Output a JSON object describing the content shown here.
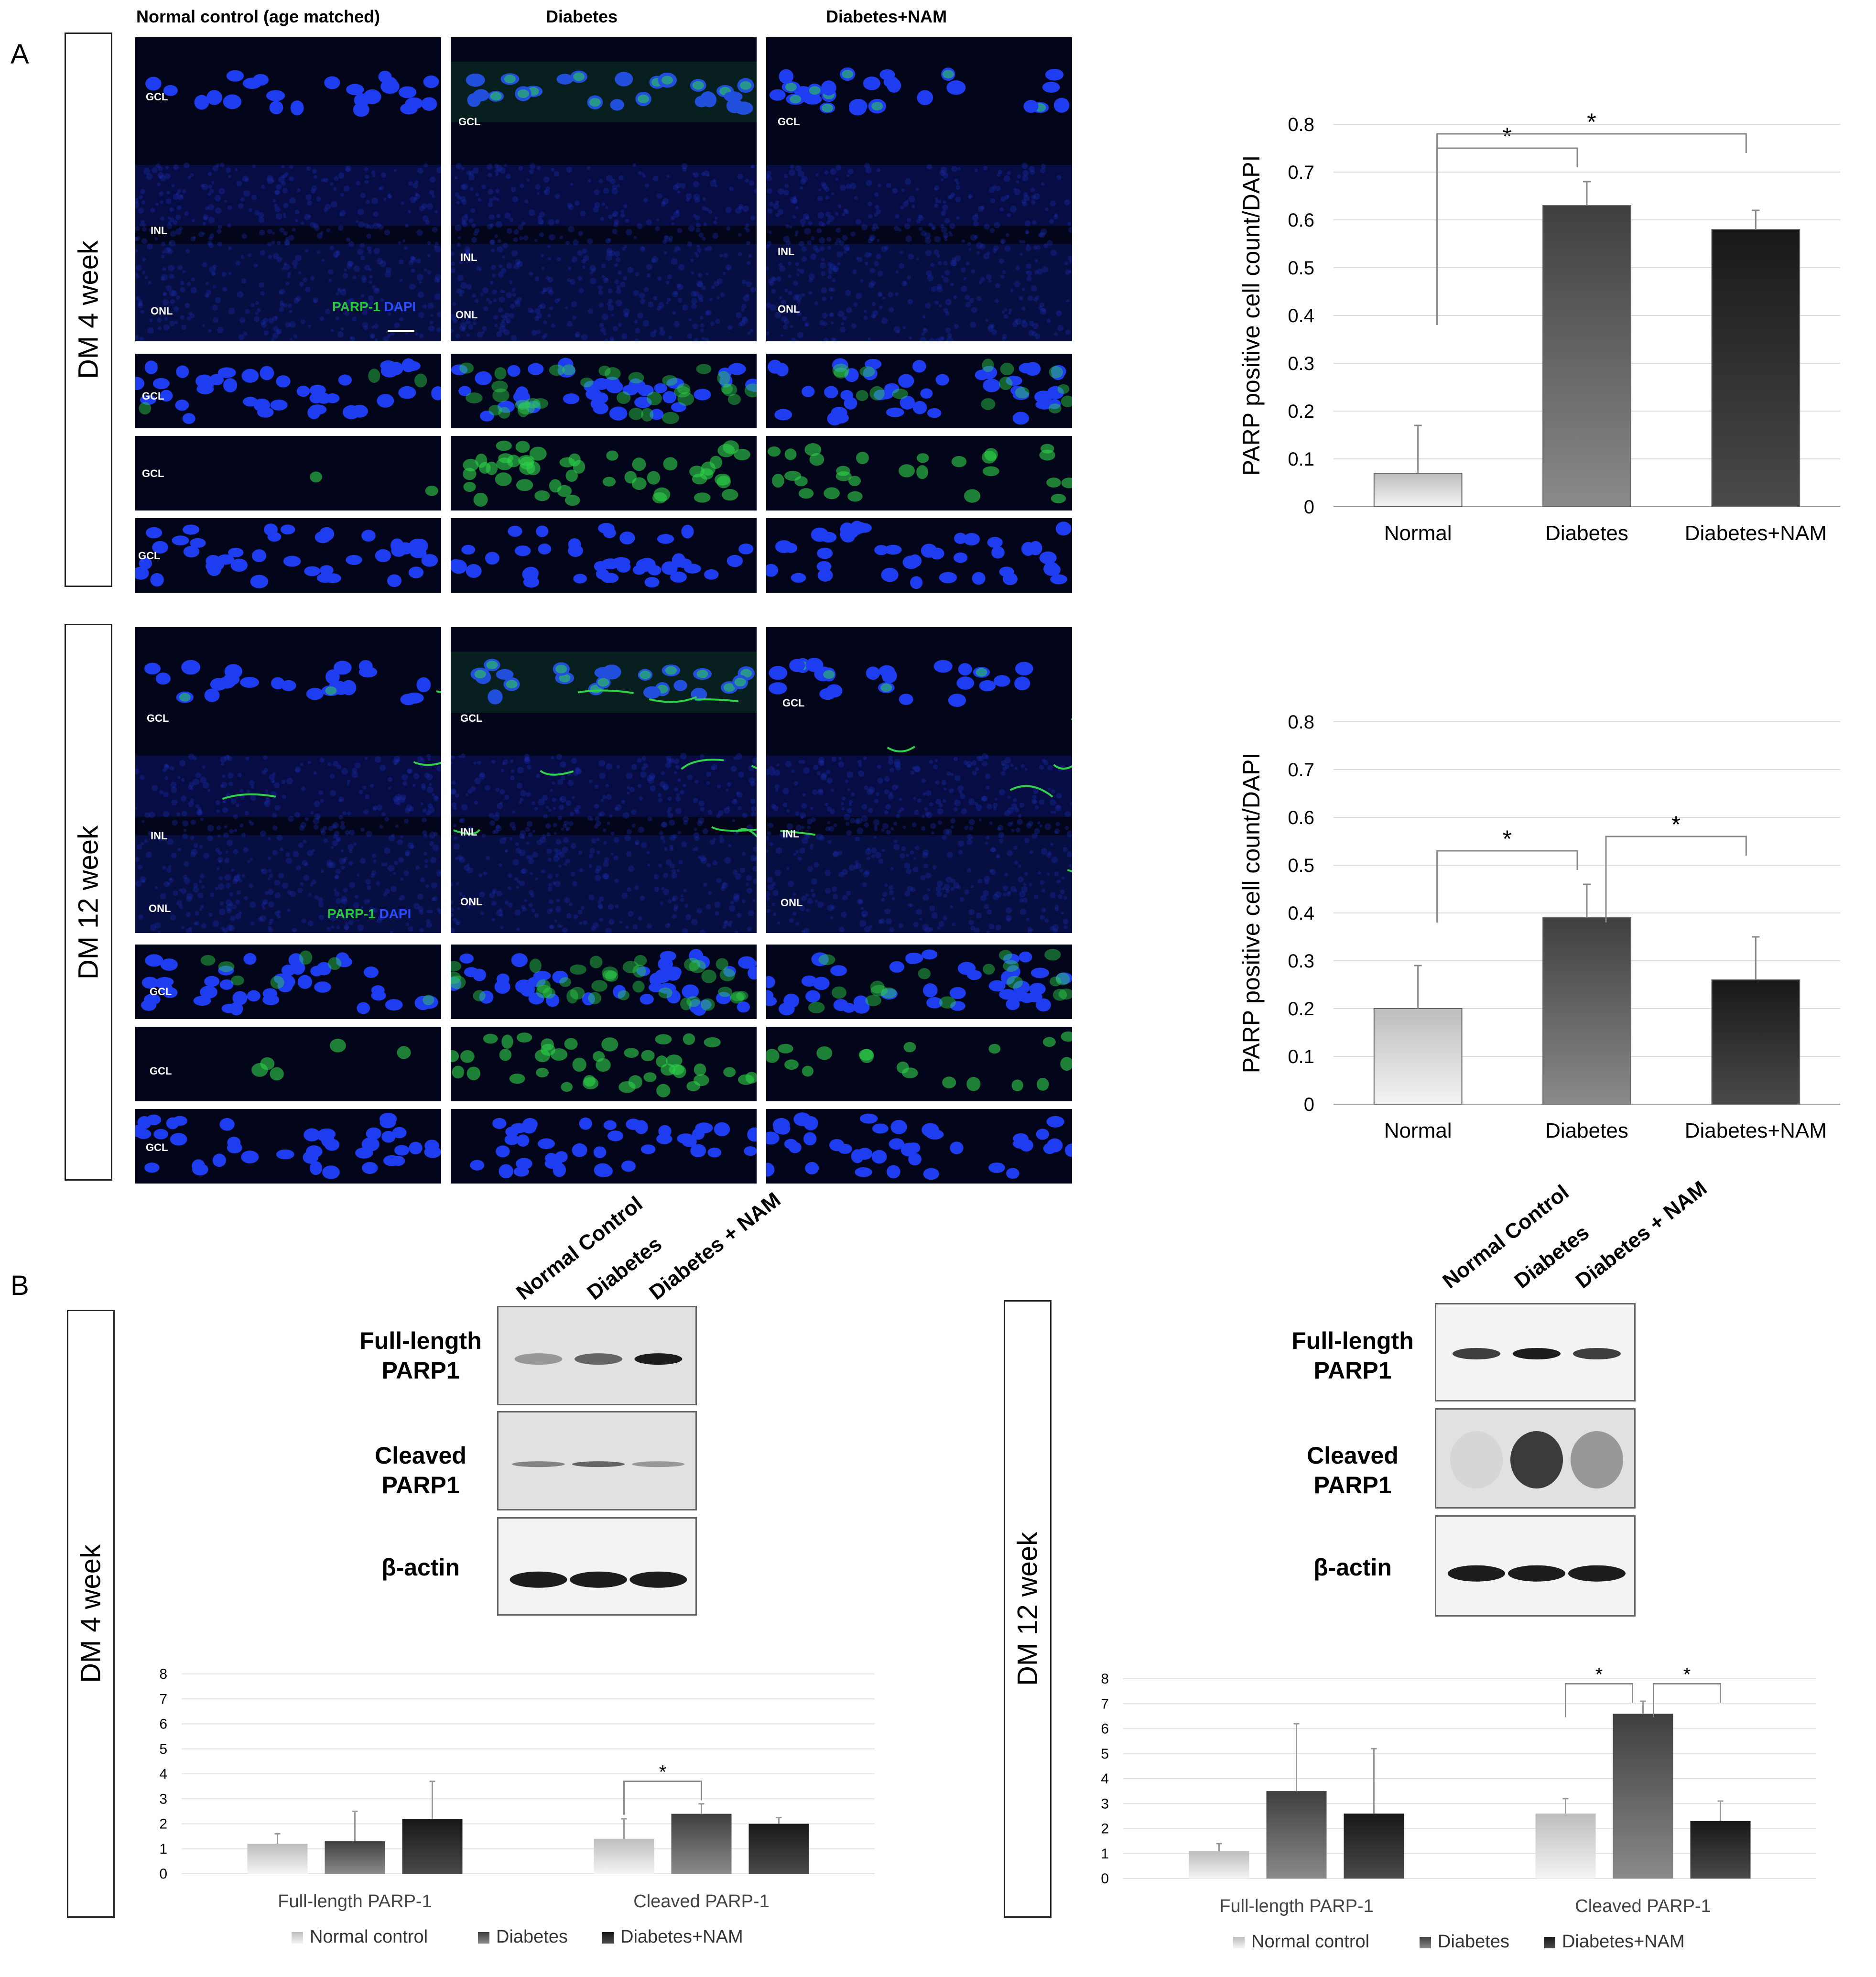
{
  "panel_a": {
    "letter": "A",
    "column_headers": [
      "Normal control (age matched)",
      "Diabetes",
      "Diabetes+NAM"
    ],
    "rows": [
      {
        "label": "DM 4 week",
        "main_layers": [
          [
            "GCL",
            "INL",
            "ONL"
          ],
          [
            "GCL",
            "INL",
            "ONL"
          ],
          [
            "GCL",
            "INL",
            "ONL"
          ]
        ],
        "strip_layer": "GCL",
        "stain": {
          "green": "PARP-1",
          "blue": "DAPI"
        }
      },
      {
        "label": "DM 12 week",
        "main_layers": [
          [
            "GCL",
            "INL",
            "ONL"
          ],
          [
            "GCL",
            "INL",
            "ONL"
          ],
          [
            "GCL",
            "INL",
            "ONL"
          ]
        ],
        "strip_layer": "GCL",
        "stain": {
          "green": "PARP-1",
          "blue": "DAPI"
        }
      }
    ]
  },
  "panel_b": {
    "letter": "B",
    "lane_labels_4wk": [
      "Normal Control",
      "Diabetes",
      "Diabetes + NAM"
    ],
    "lane_labels_12wk": [
      "Normal Control",
      "Diabetes",
      "Diabetes + NAM"
    ],
    "blot_rows": [
      "Full-length\nPARP1",
      "Cleaved\nPARP1",
      "β-actin"
    ],
    "rows": [
      {
        "label": "DM 4 week"
      },
      {
        "label": "DM 12 week"
      }
    ]
  },
  "colors": {
    "bar_light": "#d8d8d8",
    "bar_mid": "#6b6b6b",
    "bar_dark": "#2e2e2e",
    "nucleus": "#1f3df0",
    "parp": "#2fd24a",
    "tissue": "#03061a"
  },
  "chart_data": [
    {
      "id": "a_4wk",
      "type": "bar",
      "title": "",
      "ylabel": "PARP positive cell count/DAPI",
      "categories": [
        "Normal",
        "Diabetes",
        "Diabetes+NAM"
      ],
      "values": [
        0.07,
        0.63,
        0.58
      ],
      "errors": [
        0.1,
        0.05,
        0.04
      ],
      "ylim": [
        0,
        0.8
      ],
      "yticks": [
        "0",
        "0.1",
        "0.2",
        "0.3",
        "0.4",
        "0.5",
        "0.6",
        "0.7",
        "0.8"
      ],
      "significance": [
        {
          "from": 0,
          "to": 1,
          "label": "*"
        },
        {
          "from": 0,
          "to": 2,
          "label": "*"
        }
      ]
    },
    {
      "id": "a_12wk",
      "type": "bar",
      "title": "",
      "ylabel": "PARP positive cell count/DAPI",
      "categories": [
        "Normal",
        "Diabetes",
        "Diabetes+NAM"
      ],
      "values": [
        0.2,
        0.39,
        0.26
      ],
      "errors": [
        0.09,
        0.07,
        0.09
      ],
      "ylim": [
        0,
        0.8
      ],
      "yticks": [
        "0",
        "0.1",
        "0.2",
        "0.3",
        "0.4",
        "0.5",
        "0.6",
        "0.7",
        "0.8"
      ],
      "significance": [
        {
          "from": 0,
          "to": 1,
          "label": "*"
        },
        {
          "from": 1,
          "to": 2,
          "label": "*"
        }
      ]
    },
    {
      "id": "b_4wk",
      "type": "bar",
      "title": "",
      "categories": [
        "Full-length PARP-1",
        "Cleaved PARP-1"
      ],
      "series": [
        {
          "name": "Normal control",
          "values": [
            1.2,
            1.4
          ],
          "errors": [
            0.4,
            0.8
          ]
        },
        {
          "name": "Diabetes",
          "values": [
            1.3,
            2.4
          ],
          "errors": [
            1.2,
            0.4
          ]
        },
        {
          "name": "Diabetes+NAM",
          "values": [
            2.2,
            2.0
          ],
          "errors": [
            1.5,
            0.25
          ]
        }
      ],
      "ylim": [
        0,
        8
      ],
      "yticks": [
        "0",
        "1",
        "2",
        "3",
        "4",
        "5",
        "6",
        "7",
        "8"
      ],
      "significance": [
        {
          "group": 1,
          "from": 0,
          "to": 1,
          "label": "*"
        }
      ]
    },
    {
      "id": "b_12wk",
      "type": "bar",
      "title": "",
      "categories": [
        "Full-length PARP-1",
        "Cleaved PARP-1"
      ],
      "series": [
        {
          "name": "Normal control",
          "values": [
            1.1,
            2.6
          ],
          "errors": [
            0.3,
            0.6
          ]
        },
        {
          "name": "Diabetes",
          "values": [
            3.5,
            6.6
          ],
          "errors": [
            2.7,
            0.5
          ]
        },
        {
          "name": "Diabetes+NAM",
          "values": [
            2.6,
            2.3
          ],
          "errors": [
            2.6,
            0.8
          ]
        }
      ],
      "ylim": [
        0,
        8
      ],
      "yticks": [
        "0",
        "1",
        "2",
        "3",
        "4",
        "5",
        "6",
        "7",
        "8"
      ],
      "significance": [
        {
          "group": 1,
          "from": 0,
          "to": 1,
          "label": "*"
        },
        {
          "group": 1,
          "from": 1,
          "to": 2,
          "label": "*"
        }
      ]
    }
  ]
}
